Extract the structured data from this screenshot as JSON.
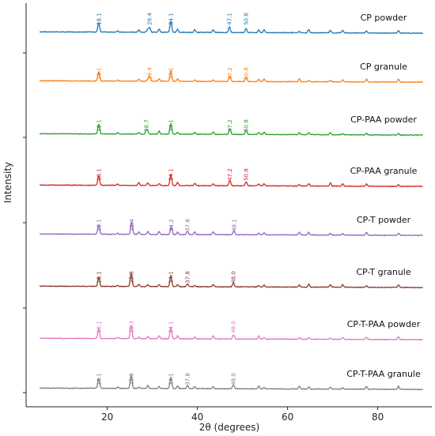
{
  "chart_data": {
    "type": "line",
    "xlabel": "2θ (degrees)",
    "ylabel": "Intensity",
    "xlim": [
      2,
      92
    ],
    "x_ticks": [
      20,
      40,
      60,
      80
    ],
    "y_tick_labels_shown": false,
    "grid": false,
    "legend": "none",
    "series": [
      {
        "name": "CP powder",
        "color": "#1f77b4",
        "peaks": [
          {
            "x": 18.1,
            "label": "18.1"
          },
          {
            "x": 29.4,
            "label": "29.4"
          },
          {
            "x": 34.1,
            "label": "34.1"
          },
          {
            "x": 47.1,
            "label": "47.1"
          },
          {
            "x": 50.8,
            "label": "50.8"
          }
        ]
      },
      {
        "name": "CP granule",
        "color": "#ff7f0e",
        "peaks": [
          {
            "x": 18.1,
            "label": "18.1"
          },
          {
            "x": 29.4,
            "label": "29.4"
          },
          {
            "x": 34.1,
            "label": "34.1"
          },
          {
            "x": 47.2,
            "label": "47.2"
          },
          {
            "x": 50.8,
            "label": "50.8"
          }
        ]
      },
      {
        "name": "CP-PAA powder",
        "color": "#2ca02c",
        "peaks": [
          {
            "x": 18.1,
            "label": "18.1"
          },
          {
            "x": 28.7,
            "label": "28.7"
          },
          {
            "x": 34.1,
            "label": "34.1"
          },
          {
            "x": 47.2,
            "label": "47.2"
          },
          {
            "x": 50.8,
            "label": "50.8"
          }
        ]
      },
      {
        "name": "CP-PAA granule",
        "color": "#d62728",
        "peaks": [
          {
            "x": 18.1,
            "label": "18.1"
          },
          {
            "x": 34.1,
            "label": "34.1"
          },
          {
            "x": 47.2,
            "label": "47.2"
          },
          {
            "x": 50.8,
            "label": "50.8"
          }
        ]
      },
      {
        "name": "CP-T powder",
        "color": "#9467bd",
        "peaks": [
          {
            "x": 18.1,
            "label": "18.1"
          },
          {
            "x": 25.4,
            "label": "25.4"
          },
          {
            "x": 34.2,
            "label": "34.2"
          },
          {
            "x": 37.8,
            "label": "37.8"
          },
          {
            "x": 48.1,
            "label": "48.1"
          }
        ]
      },
      {
        "name": "CP-T granule",
        "color": "#8c3b2f",
        "peaks": [
          {
            "x": 18.1,
            "label": "18.1"
          },
          {
            "x": 25.3,
            "label": "25.3"
          },
          {
            "x": 34.1,
            "label": "34.1"
          },
          {
            "x": 37.8,
            "label": "37.8"
          },
          {
            "x": 48.0,
            "label": "48.0"
          }
        ]
      },
      {
        "name": "CP-T-PAA powder",
        "color": "#e377c2",
        "peaks": [
          {
            "x": 18.1,
            "label": "18.1"
          },
          {
            "x": 25.3,
            "label": "25.3"
          },
          {
            "x": 34.1,
            "label": "34.1"
          },
          {
            "x": 48.0,
            "label": "48.0"
          }
        ]
      },
      {
        "name": "CP-T-PAA granule",
        "color": "#7f7f7f",
        "peaks": [
          {
            "x": 18.1,
            "label": "18.1"
          },
          {
            "x": 25.3,
            "label": "25.3"
          },
          {
            "x": 34.1,
            "label": "34.1"
          },
          {
            "x": 37.8,
            "label": "37.8"
          },
          {
            "x": 48.0,
            "label": "48.0"
          }
        ]
      }
    ]
  }
}
